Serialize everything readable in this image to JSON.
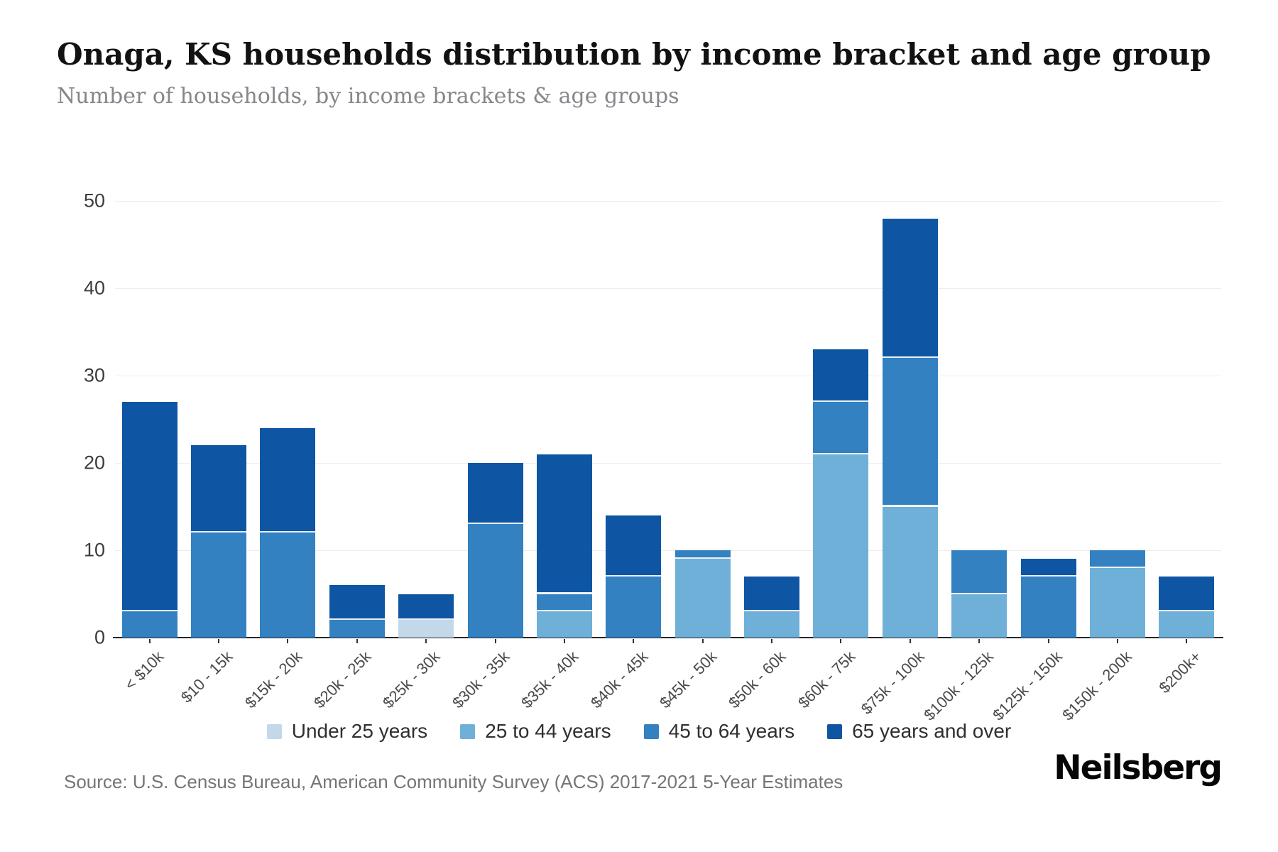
{
  "header": {
    "title": "Onaga, KS households distribution by income bracket and age group",
    "subtitle": "Number of households, by income brackets & age groups"
  },
  "footer": {
    "source": "Source: U.S. Census Bureau, American Community Survey (ACS) 2017-2021 5-Year Estimates",
    "brand": "Neilsberg"
  },
  "colors": {
    "under_25": "#c3d8e9",
    "age_25_44": "#6fb0d8",
    "age_45_64": "#3381c1",
    "age_65_over": "#0e56a3",
    "gridline": "#ededed",
    "axis": "#23262b"
  },
  "chart_data": {
    "type": "bar",
    "stacked": true,
    "title": "Onaga, KS households distribution by income bracket and age group",
    "xlabel": "",
    "ylabel": "Number of households",
    "ylim": [
      0,
      50
    ],
    "yticks": [
      0,
      10,
      20,
      30,
      40,
      50
    ],
    "grid": true,
    "legend_position": "bottom",
    "categories": [
      "< $10k",
      "$10 - 15k",
      "$15k - 20k",
      "$20k - 25k",
      "$25k - 30k",
      "$30k - 35k",
      "$35k - 40k",
      "$40k - 45k",
      "$45k - 50k",
      "$50k - 60k",
      "$60k - 75k",
      "$75k - 100k",
      "$100k - 125k",
      "$125k - 150k",
      "$150k - 200k",
      "$200k+"
    ],
    "series": [
      {
        "name": "Under 25 years",
        "color": "#c3d8e9",
        "values": [
          0,
          0,
          0,
          0,
          2,
          0,
          0,
          0,
          0,
          0,
          0,
          0,
          0,
          0,
          0,
          0
        ]
      },
      {
        "name": "25 to 44 years",
        "color": "#6fb0d8",
        "values": [
          0,
          0,
          0,
          0,
          0,
          0,
          3,
          0,
          9,
          3,
          21,
          15,
          5,
          0,
          8,
          3
        ]
      },
      {
        "name": "45 to 64 years",
        "color": "#3381c1",
        "values": [
          3,
          12,
          12,
          2,
          0,
          13,
          2,
          7,
          1,
          0,
          6,
          17,
          5,
          7,
          2,
          0
        ]
      },
      {
        "name": "65 years and over",
        "color": "#0e56a3",
        "values": [
          24,
          10,
          12,
          4,
          3,
          7,
          16,
          7,
          0,
          4,
          6,
          16,
          0,
          2,
          0,
          4
        ]
      }
    ],
    "totals": [
      27,
      22,
      24,
      6,
      5,
      20,
      21,
      14,
      10,
      7,
      33,
      48,
      10,
      9,
      10,
      7
    ]
  }
}
